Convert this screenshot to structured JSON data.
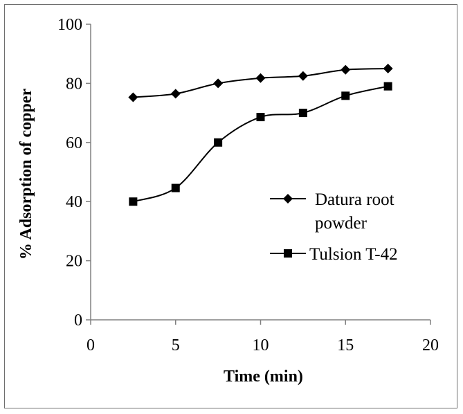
{
  "chart_data": {
    "type": "line",
    "title": "",
    "xlabel": "Time (min)",
    "ylabel": "% Adsorption of copper",
    "xlim": [
      0,
      20
    ],
    "ylim": [
      0,
      100
    ],
    "xticks": [
      0,
      5,
      10,
      15,
      20
    ],
    "yticks": [
      0,
      20,
      40,
      60,
      80,
      100
    ],
    "grid": false,
    "smooth": true,
    "legend_position": "right",
    "series": [
      {
        "name": "Datura root powder",
        "legend_lines": [
          "Datura root",
          "powder"
        ],
        "marker": "diamond",
        "color": "#000000",
        "x": [
          2.5,
          5,
          7.5,
          10,
          12.5,
          15,
          17.5
        ],
        "y": [
          75.3,
          76.5,
          80,
          81.8,
          82.5,
          84.6,
          85
        ]
      },
      {
        "name": "Tulsion T-42",
        "legend_lines": [
          "Tulsion T-42"
        ],
        "marker": "square",
        "color": "#000000",
        "x": [
          2.5,
          5,
          7.5,
          10,
          12.5,
          15,
          17.5
        ],
        "y": [
          40,
          44.6,
          60,
          68.6,
          70,
          75.8,
          79
        ]
      }
    ]
  }
}
